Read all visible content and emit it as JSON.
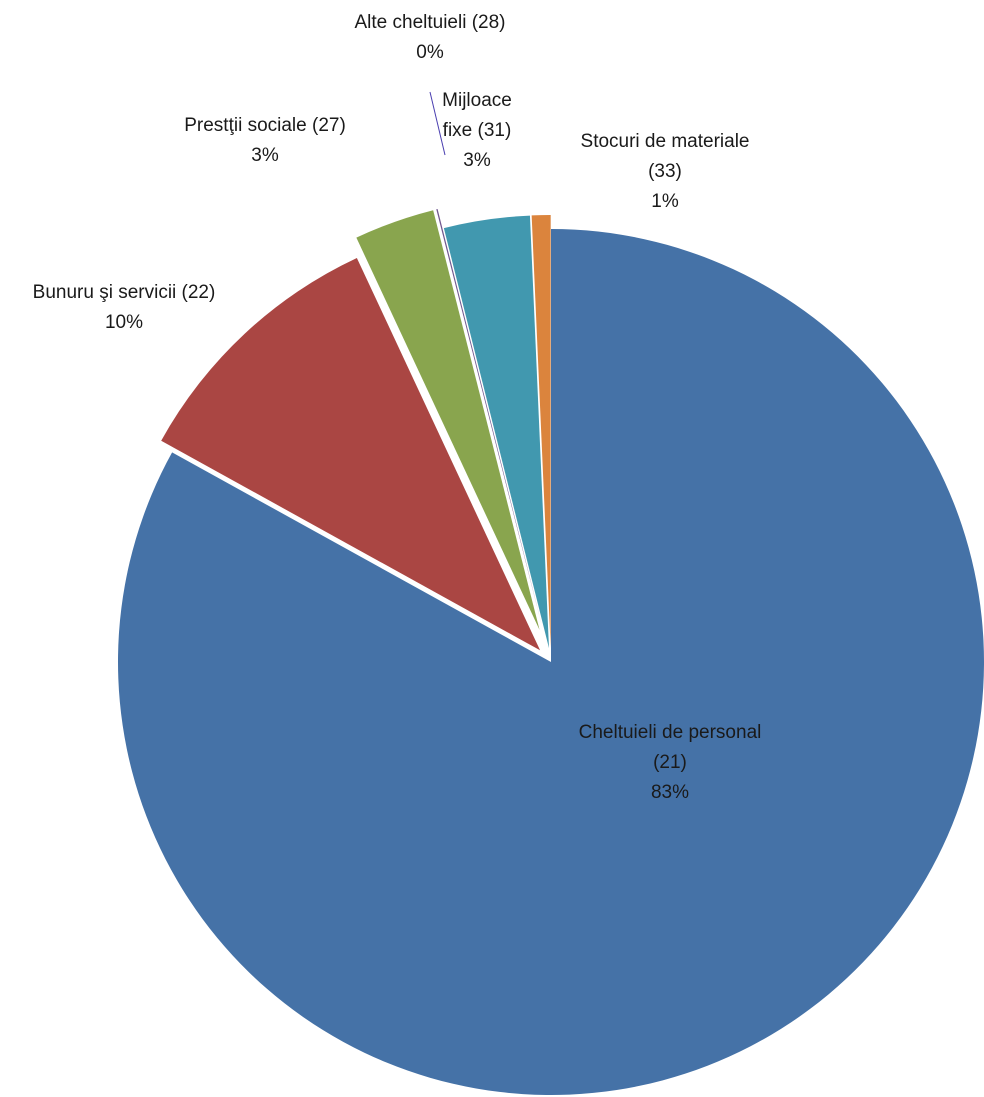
{
  "chart_data": {
    "type": "pie",
    "title": "",
    "start_angle_deg": 0,
    "direction": "clockwise",
    "exploded": true,
    "slices": [
      {
        "label": "Cheltuieli de personal (21)",
        "line1": "Cheltuieli de personal",
        "line2": "(21)",
        "value": 83,
        "percent_label": "83%",
        "color": "#4572A7"
      },
      {
        "label": "Bunuru şi servicii (22)",
        "line1": "Bunuru şi servicii (22)",
        "line2": "",
        "value": 10,
        "percent_label": "10%",
        "color": "#AA4643"
      },
      {
        "label": "Prestţii sociale (27)",
        "line1": "Prestţii sociale (27)",
        "line2": "",
        "value": 3,
        "percent_label": "3%",
        "color": "#89A54E"
      },
      {
        "label": "Alte cheltuieli (28)",
        "line1": "Alte cheltuieli (28)",
        "line2": "",
        "value": 0.05,
        "percent_label": "0%",
        "color": "#71588F"
      },
      {
        "label": "Mijloace fixe (31)",
        "line1": "Mijloace",
        "line2": "fixe (31)",
        "value": 3.2,
        "percent_label": "3%",
        "color": "#4198AF"
      },
      {
        "label": "Stocuri de materiale (33)",
        "line1": "Stocuri de materiale",
        "line2": "(33)",
        "value": 0.7,
        "percent_label": "1%",
        "color": "#DB843D"
      }
    ]
  }
}
